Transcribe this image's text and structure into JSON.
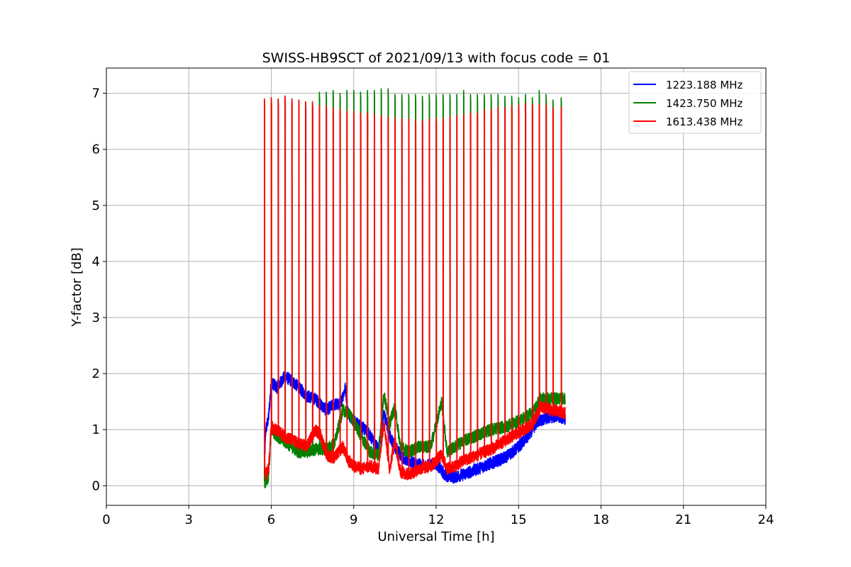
{
  "chart_data": {
    "type": "line",
    "title": "SWISS-HB9SCT of 2021/09/13 with focus code = 01",
    "xlabel": "Universal Time [h]",
    "ylabel": "Y-factor [dB]",
    "xlim": [
      0,
      24
    ],
    "ylim": [
      -0.35,
      7.45
    ],
    "xticks": [
      0,
      3,
      6,
      9,
      12,
      15,
      18,
      21,
      24
    ],
    "yticks": [
      0,
      1,
      2,
      3,
      4,
      5,
      6,
      7
    ],
    "grid": true,
    "legend_position": "top-right",
    "series": [
      {
        "name": "1223.188 MHz",
        "color": "#0000ff",
        "points": [
          [
            5.75,
            0.3
          ],
          [
            5.8,
            1.0
          ],
          [
            5.9,
            1.2
          ],
          [
            6.0,
            1.85
          ],
          [
            6.2,
            1.75
          ],
          [
            6.5,
            1.95
          ],
          [
            6.8,
            1.85
          ],
          [
            7.0,
            1.75
          ],
          [
            7.3,
            1.6
          ],
          [
            7.6,
            1.55
          ],
          [
            7.8,
            1.45
          ],
          [
            8.0,
            1.35
          ],
          [
            8.3,
            1.45
          ],
          [
            8.5,
            1.45
          ],
          [
            8.7,
            1.75
          ],
          [
            8.8,
            1.3
          ],
          [
            9.0,
            1.15
          ],
          [
            9.3,
            1.05
          ],
          [
            9.6,
            0.9
          ],
          [
            9.9,
            0.65
          ],
          [
            10.1,
            1.3
          ],
          [
            10.3,
            0.9
          ],
          [
            10.5,
            0.7
          ],
          [
            10.8,
            0.5
          ],
          [
            11.2,
            0.4
          ],
          [
            11.6,
            0.35
          ],
          [
            12.0,
            0.4
          ],
          [
            12.3,
            0.2
          ],
          [
            12.6,
            0.15
          ],
          [
            13.0,
            0.2
          ],
          [
            13.5,
            0.3
          ],
          [
            14.0,
            0.4
          ],
          [
            14.5,
            0.5
          ],
          [
            14.9,
            0.65
          ],
          [
            15.3,
            0.85
          ],
          [
            15.7,
            1.15
          ],
          [
            16.0,
            1.2
          ],
          [
            16.4,
            1.25
          ],
          [
            16.7,
            1.2
          ]
        ]
      },
      {
        "name": "1423.750 MHz",
        "color": "#008000",
        "points": [
          [
            5.75,
            0.05
          ],
          [
            5.8,
            0.05
          ],
          [
            5.9,
            0.15
          ],
          [
            6.0,
            1.0
          ],
          [
            6.3,
            0.85
          ],
          [
            6.6,
            0.75
          ],
          [
            7.0,
            0.6
          ],
          [
            7.3,
            0.6
          ],
          [
            7.6,
            0.65
          ],
          [
            7.8,
            0.65
          ],
          [
            8.0,
            0.65
          ],
          [
            8.3,
            0.75
          ],
          [
            8.6,
            1.35
          ],
          [
            8.8,
            1.3
          ],
          [
            9.0,
            1.15
          ],
          [
            9.3,
            0.85
          ],
          [
            9.6,
            0.6
          ],
          [
            9.9,
            0.55
          ],
          [
            10.1,
            1.65
          ],
          [
            10.3,
            1.1
          ],
          [
            10.5,
            1.4
          ],
          [
            10.7,
            0.7
          ],
          [
            11.0,
            0.6
          ],
          [
            11.4,
            0.7
          ],
          [
            11.8,
            0.7
          ],
          [
            12.2,
            1.5
          ],
          [
            12.4,
            0.6
          ],
          [
            12.7,
            0.7
          ],
          [
            13.0,
            0.8
          ],
          [
            13.5,
            0.9
          ],
          [
            14.0,
            1.0
          ],
          [
            14.5,
            1.05
          ],
          [
            15.0,
            1.15
          ],
          [
            15.5,
            1.3
          ],
          [
            15.8,
            1.55
          ],
          [
            16.2,
            1.55
          ],
          [
            16.7,
            1.55
          ]
        ]
      },
      {
        "name": "1613.438 MHz",
        "color": "#ff0000",
        "points": [
          [
            5.75,
            0.35
          ],
          [
            5.8,
            0.2
          ],
          [
            5.9,
            0.3
          ],
          [
            6.0,
            1.05
          ],
          [
            6.3,
            0.95
          ],
          [
            6.6,
            0.85
          ],
          [
            7.0,
            0.75
          ],
          [
            7.3,
            0.7
          ],
          [
            7.6,
            1.0
          ],
          [
            7.8,
            0.9
          ],
          [
            8.0,
            0.55
          ],
          [
            8.3,
            0.5
          ],
          [
            8.6,
            0.7
          ],
          [
            8.8,
            0.45
          ],
          [
            9.0,
            0.35
          ],
          [
            9.3,
            0.3
          ],
          [
            9.6,
            0.35
          ],
          [
            9.9,
            0.3
          ],
          [
            10.1,
            1.15
          ],
          [
            10.3,
            0.3
          ],
          [
            10.5,
            0.8
          ],
          [
            10.7,
            0.25
          ],
          [
            11.0,
            0.2
          ],
          [
            11.4,
            0.3
          ],
          [
            11.8,
            0.35
          ],
          [
            12.2,
            0.55
          ],
          [
            12.4,
            0.3
          ],
          [
            12.7,
            0.35
          ],
          [
            13.0,
            0.45
          ],
          [
            13.5,
            0.55
          ],
          [
            14.0,
            0.65
          ],
          [
            14.5,
            0.8
          ],
          [
            15.0,
            0.95
          ],
          [
            15.5,
            1.1
          ],
          [
            15.8,
            1.4
          ],
          [
            16.2,
            1.35
          ],
          [
            16.7,
            1.3
          ]
        ]
      }
    ],
    "calibration_spikes": {
      "times": [
        5.75,
        6.0,
        6.25,
        6.5,
        6.75,
        7.0,
        7.25,
        7.5,
        7.75,
        8.0,
        8.25,
        8.5,
        8.75,
        9.0,
        9.25,
        9.5,
        9.75,
        10.0,
        10.25,
        10.5,
        10.75,
        11.0,
        11.25,
        11.5,
        11.75,
        12.0,
        12.25,
        12.5,
        12.75,
        13.0,
        13.25,
        13.5,
        13.75,
        14.0,
        14.25,
        14.5,
        14.75,
        15.0,
        15.25,
        15.5,
        15.75,
        16.0,
        16.25,
        16.55
      ],
      "green_peaks": [
        6.9,
        6.92,
        6.9,
        6.95,
        6.9,
        6.88,
        6.85,
        6.85,
        7.02,
        7.02,
        7.05,
        7.0,
        7.05,
        7.05,
        7.02,
        7.05,
        7.05,
        7.08,
        7.08,
        6.98,
        6.98,
        6.98,
        6.98,
        6.95,
        6.98,
        6.98,
        6.98,
        6.98,
        6.98,
        7.05,
        6.98,
        6.98,
        6.98,
        6.98,
        6.98,
        6.95,
        6.95,
        6.92,
        6.98,
        6.92,
        7.05,
        6.98,
        6.88,
        6.92
      ],
      "red_peaks": [
        6.9,
        6.92,
        6.9,
        6.95,
        6.9,
        6.88,
        6.85,
        6.85,
        6.78,
        6.78,
        6.75,
        6.72,
        6.68,
        6.68,
        6.65,
        6.65,
        6.62,
        6.6,
        6.58,
        6.55,
        6.55,
        6.55,
        6.52,
        6.52,
        6.55,
        6.55,
        6.55,
        6.58,
        6.6,
        6.62,
        6.65,
        6.65,
        6.7,
        6.72,
        6.75,
        6.75,
        6.78,
        6.8,
        6.82,
        6.8,
        6.8,
        6.8,
        6.75,
        6.75
      ]
    }
  }
}
